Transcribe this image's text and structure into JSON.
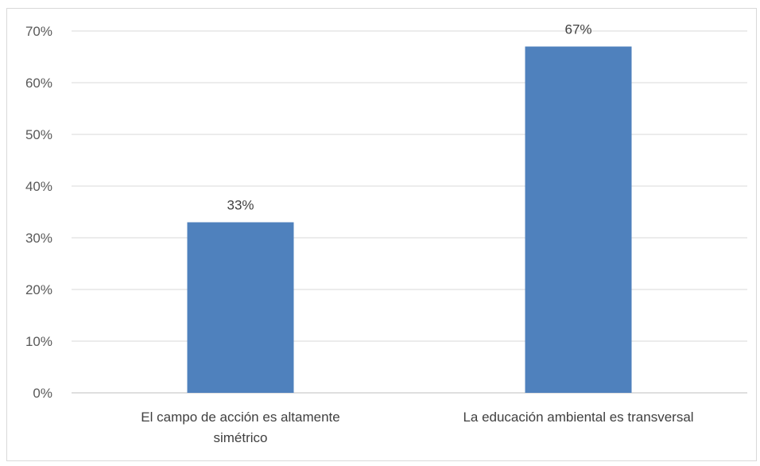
{
  "chart_data": {
    "type": "bar",
    "categories": [
      [
        "El campo de acción es altamente",
        "simétrico"
      ],
      [
        "La educación ambiental es transversal"
      ]
    ],
    "values": [
      0.33,
      0.67
    ],
    "data_labels": [
      "33%",
      "67%"
    ],
    "y_ticks": [
      0,
      0.1,
      0.2,
      0.3,
      0.4,
      0.5,
      0.6,
      0.7
    ],
    "y_tick_labels": [
      "0%",
      "10%",
      "20%",
      "30%",
      "40%",
      "50%",
      "60%",
      "70%"
    ],
    "ylim": [
      0,
      0.7
    ],
    "title": "",
    "xlabel": "",
    "ylabel": "",
    "grid": true,
    "legend": "none",
    "colors": {
      "bar": "#4F81BD",
      "grid": "#d9d9d9",
      "axis": "#bfbfbf"
    }
  }
}
